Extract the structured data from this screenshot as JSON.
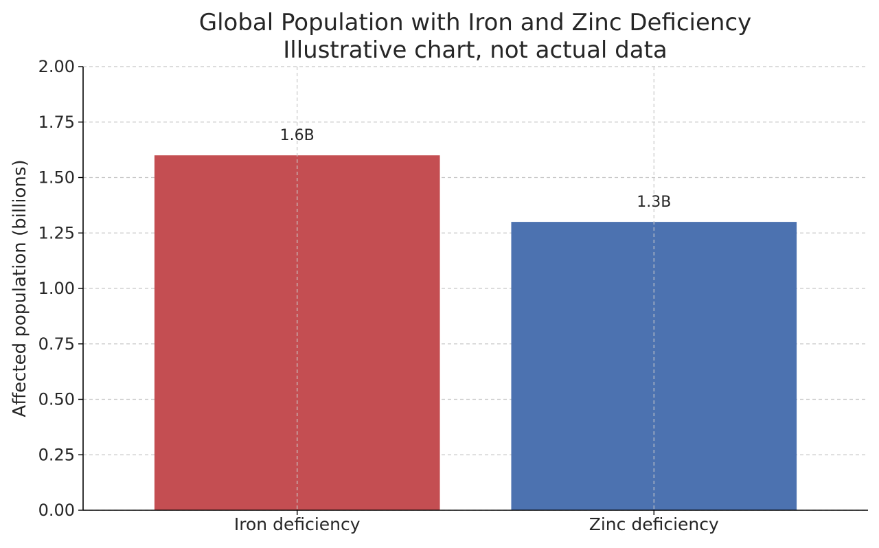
{
  "chart_data": {
    "type": "bar",
    "title": "Global Population with Iron and Zinc Deficiency",
    "subtitle": "Illustrative chart, not actual data",
    "xlabel": "",
    "ylabel": "Affected population (billions)",
    "categories": [
      "Iron deficiency",
      "Zinc deficiency"
    ],
    "values": [
      1.6,
      1.3
    ],
    "data_labels": [
      "1.6B",
      "1.3B"
    ],
    "colors": [
      "#c44e52",
      "#4c72b0"
    ],
    "ylim": [
      0,
      2.0
    ],
    "yticks": [
      0.0,
      0.25,
      0.5,
      0.75,
      1.0,
      1.25,
      1.5,
      1.75,
      2.0
    ],
    "ytick_labels": [
      "0.00",
      "0.25",
      "0.50",
      "0.75",
      "1.00",
      "1.25",
      "1.50",
      "1.75",
      "2.00"
    ],
    "grid": true,
    "grid_style": "dashed"
  }
}
